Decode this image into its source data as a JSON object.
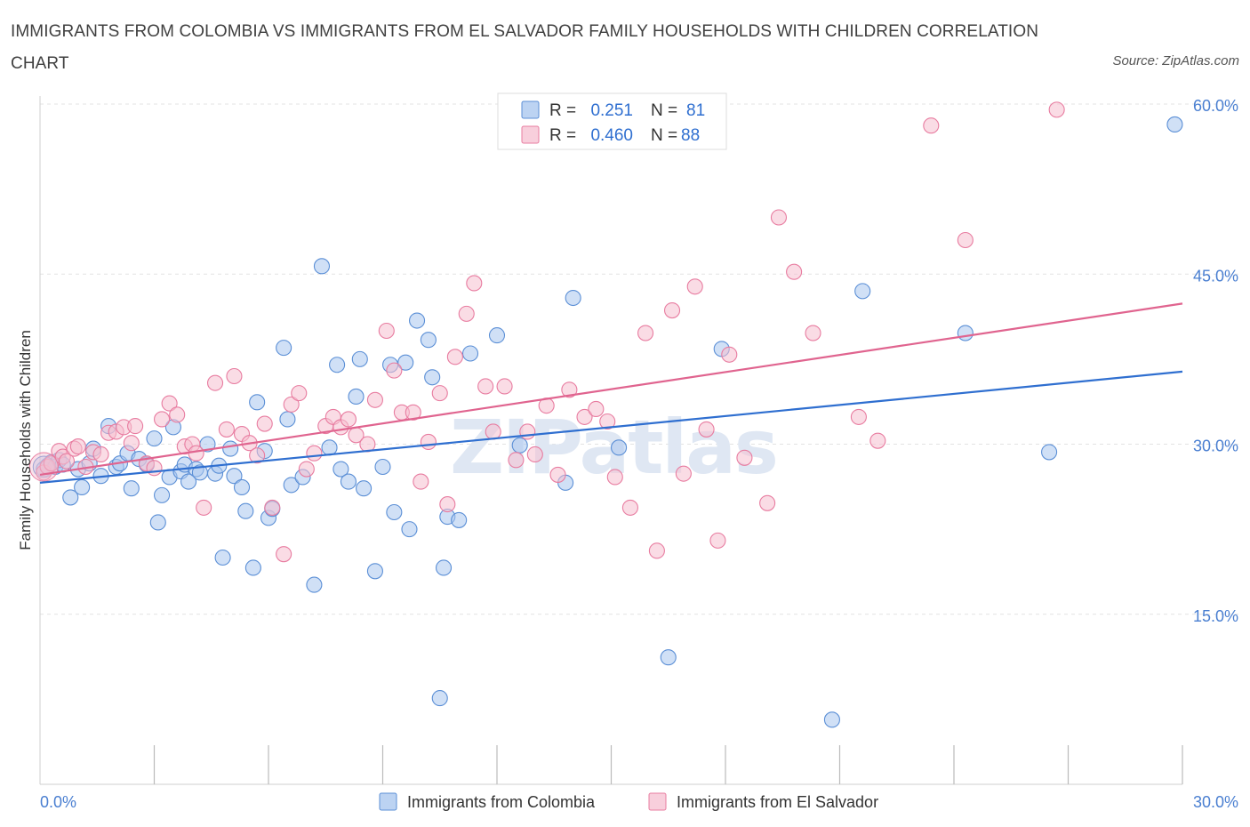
{
  "header": {
    "title": "IMMIGRANTS FROM COLOMBIA VS IMMIGRANTS FROM EL SALVADOR FAMILY HOUSEHOLDS WITH CHILDREN CORRELATION CHART",
    "source": "Source: ZipAtlas.com"
  },
  "colors": {
    "blue": "#5b8fd6",
    "blue_fill": "#a9c6ee",
    "pink": "#e87ca0",
    "pink_fill": "#f5bfd0",
    "blue_line": "#2f6fd0",
    "pink_line": "#e0648f"
  },
  "chart_data": {
    "type": "scatter",
    "title": "IMMIGRANTS FROM COLOMBIA VS IMMIGRANTS FROM EL SALVADOR FAMILY HOUSEHOLDS WITH CHILDREN CORRELATION CHART",
    "xlabel": "",
    "ylabel": "Family Households with Children",
    "xlim": [
      0,
      30
    ],
    "ylim": [
      0,
      60
    ],
    "x_tick_labels": [
      "0.0%",
      "30.0%"
    ],
    "y_tick_values": [
      15,
      30,
      45,
      60
    ],
    "y_tick_labels": [
      "15.0%",
      "30.0%",
      "45.0%",
      "60.0%"
    ],
    "watermark": "ZIPatlas",
    "legend": [
      {
        "name": "Immigrants from Colombia",
        "r_label": "R =",
        "r_value": "0.251",
        "n_label": "N =",
        "n_value": "81"
      },
      {
        "name": "Immigrants from El Salvador",
        "r_label": "R =",
        "r_value": "0.460",
        "n_label": "N =",
        "n_value": "88"
      }
    ],
    "series": [
      {
        "name": "Immigrants from Colombia",
        "trend": {
          "x0": 0,
          "y0": 26.6,
          "x1": 30,
          "y1": 36.4
        },
        "points": [
          [
            0.1,
            27.8
          ],
          [
            0.2,
            28.1
          ],
          [
            0.3,
            28.4
          ],
          [
            0.4,
            28.0
          ],
          [
            0.5,
            28.6
          ],
          [
            0.6,
            28.2
          ],
          [
            0.8,
            25.3
          ],
          [
            1.0,
            27.8
          ],
          [
            1.1,
            26.2
          ],
          [
            1.3,
            28.3
          ],
          [
            1.4,
            29.6
          ],
          [
            1.6,
            27.2
          ],
          [
            1.8,
            31.6
          ],
          [
            2.0,
            28.0
          ],
          [
            2.1,
            28.3
          ],
          [
            2.3,
            29.2
          ],
          [
            2.4,
            26.1
          ],
          [
            2.6,
            28.7
          ],
          [
            2.8,
            28.2
          ],
          [
            3.0,
            30.5
          ],
          [
            3.1,
            23.1
          ],
          [
            3.2,
            25.5
          ],
          [
            3.4,
            27.1
          ],
          [
            3.5,
            31.5
          ],
          [
            3.7,
            27.6
          ],
          [
            3.8,
            28.2
          ],
          [
            3.9,
            26.7
          ],
          [
            4.1,
            27.8
          ],
          [
            4.2,
            27.5
          ],
          [
            4.4,
            30.0
          ],
          [
            4.6,
            27.4
          ],
          [
            4.7,
            28.1
          ],
          [
            4.8,
            20.0
          ],
          [
            5.0,
            29.6
          ],
          [
            5.1,
            27.2
          ],
          [
            5.3,
            26.2
          ],
          [
            5.4,
            24.1
          ],
          [
            5.6,
            19.1
          ],
          [
            5.7,
            33.7
          ],
          [
            5.9,
            29.4
          ],
          [
            6.0,
            23.5
          ],
          [
            6.1,
            24.3
          ],
          [
            6.4,
            38.5
          ],
          [
            6.5,
            32.2
          ],
          [
            6.6,
            26.4
          ],
          [
            6.9,
            27.1
          ],
          [
            7.2,
            17.6
          ],
          [
            7.4,
            45.7
          ],
          [
            7.6,
            29.7
          ],
          [
            7.8,
            37.0
          ],
          [
            7.9,
            27.8
          ],
          [
            8.1,
            26.7
          ],
          [
            8.3,
            34.2
          ],
          [
            8.4,
            37.5
          ],
          [
            8.5,
            26.1
          ],
          [
            8.8,
            18.8
          ],
          [
            9.0,
            28.0
          ],
          [
            9.2,
            37.0
          ],
          [
            9.3,
            24.0
          ],
          [
            9.6,
            37.2
          ],
          [
            9.7,
            22.5
          ],
          [
            9.9,
            40.9
          ],
          [
            10.2,
            39.2
          ],
          [
            10.3,
            35.9
          ],
          [
            10.6,
            19.1
          ],
          [
            10.7,
            23.6
          ],
          [
            11.0,
            23.3
          ],
          [
            11.3,
            38.0
          ],
          [
            12.0,
            39.6
          ],
          [
            12.6,
            29.9
          ],
          [
            13.8,
            26.6
          ],
          [
            14.0,
            42.9
          ],
          [
            15.2,
            29.7
          ],
          [
            16.5,
            11.2
          ],
          [
            17.9,
            38.4
          ],
          [
            20.8,
            5.7
          ],
          [
            21.6,
            43.5
          ],
          [
            24.3,
            39.8
          ],
          [
            26.5,
            29.3
          ],
          [
            29.8,
            58.2
          ],
          [
            10.5,
            7.6
          ]
        ]
      },
      {
        "name": "Immigrants from El Salvador",
        "trend": {
          "x0": 0,
          "y0": 27.3,
          "x1": 30,
          "y1": 42.4
        },
        "points": [
          [
            0.1,
            27.5
          ],
          [
            0.2,
            28.0
          ],
          [
            0.3,
            28.3
          ],
          [
            0.5,
            29.4
          ],
          [
            0.6,
            28.9
          ],
          [
            0.7,
            28.5
          ],
          [
            0.9,
            29.6
          ],
          [
            1.0,
            29.8
          ],
          [
            1.2,
            28.0
          ],
          [
            1.4,
            29.3
          ],
          [
            1.6,
            29.1
          ],
          [
            1.8,
            31.0
          ],
          [
            2.0,
            31.1
          ],
          [
            2.2,
            31.5
          ],
          [
            2.4,
            30.1
          ],
          [
            2.5,
            31.6
          ],
          [
            2.8,
            28.3
          ],
          [
            3.0,
            27.9
          ],
          [
            3.2,
            32.2
          ],
          [
            3.4,
            33.6
          ],
          [
            3.6,
            32.6
          ],
          [
            3.8,
            29.8
          ],
          [
            4.0,
            30.0
          ],
          [
            4.1,
            29.2
          ],
          [
            4.3,
            24.4
          ],
          [
            4.6,
            35.4
          ],
          [
            4.9,
            31.3
          ],
          [
            5.1,
            36.0
          ],
          [
            5.3,
            30.9
          ],
          [
            5.5,
            30.1
          ],
          [
            5.7,
            29.0
          ],
          [
            5.9,
            31.8
          ],
          [
            6.1,
            24.4
          ],
          [
            6.4,
            20.3
          ],
          [
            6.6,
            33.5
          ],
          [
            6.8,
            34.5
          ],
          [
            7.0,
            27.8
          ],
          [
            7.2,
            29.2
          ],
          [
            7.5,
            31.6
          ],
          [
            7.7,
            32.4
          ],
          [
            7.9,
            31.5
          ],
          [
            8.1,
            32.2
          ],
          [
            8.3,
            30.8
          ],
          [
            8.6,
            30.0
          ],
          [
            8.8,
            33.9
          ],
          [
            9.1,
            40.0
          ],
          [
            9.3,
            36.5
          ],
          [
            9.5,
            32.8
          ],
          [
            9.8,
            32.8
          ],
          [
            10.0,
            26.7
          ],
          [
            10.2,
            30.2
          ],
          [
            10.5,
            34.5
          ],
          [
            10.7,
            24.7
          ],
          [
            10.9,
            37.7
          ],
          [
            11.2,
            41.5
          ],
          [
            11.4,
            44.2
          ],
          [
            11.7,
            35.1
          ],
          [
            11.9,
            31.1
          ],
          [
            12.2,
            35.1
          ],
          [
            12.5,
            28.6
          ],
          [
            12.8,
            31.1
          ],
          [
            13.0,
            29.1
          ],
          [
            13.3,
            33.4
          ],
          [
            13.6,
            27.3
          ],
          [
            13.9,
            34.8
          ],
          [
            14.3,
            32.4
          ],
          [
            14.6,
            33.1
          ],
          [
            14.9,
            32.0
          ],
          [
            15.1,
            27.1
          ],
          [
            15.5,
            24.4
          ],
          [
            15.9,
            39.8
          ],
          [
            16.2,
            20.6
          ],
          [
            16.6,
            41.8
          ],
          [
            16.9,
            27.4
          ],
          [
            17.2,
            43.9
          ],
          [
            17.5,
            31.3
          ],
          [
            17.8,
            21.5
          ],
          [
            18.1,
            37.9
          ],
          [
            18.5,
            28.8
          ],
          [
            19.1,
            24.8
          ],
          [
            19.4,
            50.0
          ],
          [
            19.8,
            45.2
          ],
          [
            20.3,
            39.8
          ],
          [
            21.5,
            32.4
          ],
          [
            22.0,
            30.3
          ],
          [
            23.4,
            58.1
          ],
          [
            24.3,
            48.0
          ],
          [
            26.7,
            59.5
          ]
        ]
      }
    ]
  }
}
